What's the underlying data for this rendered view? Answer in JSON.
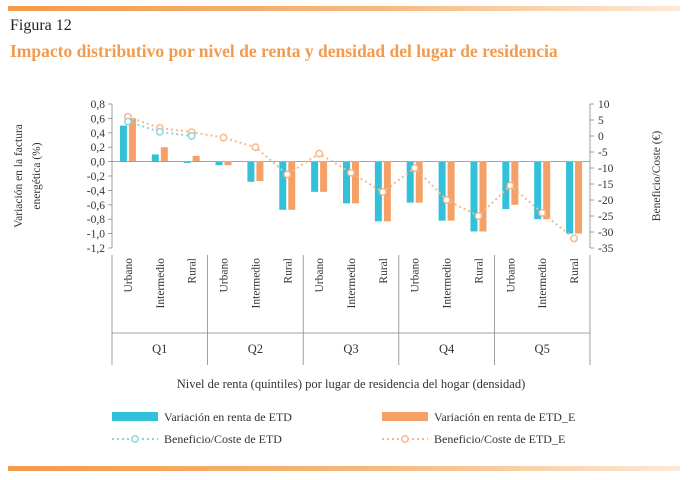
{
  "header": {
    "figure_label": "Figura 12",
    "title": "Impacto distributivo por nivel de renta y densidad del lugar de residencia"
  },
  "colors": {
    "accent": "#f29a4d",
    "etd": "#33c1d9",
    "etd_e": "#f5a066",
    "line_etd": "#8fd3e0",
    "line_etd_e": "#f5b98a"
  },
  "chart_data": {
    "type": "bar",
    "title": "Impacto distributivo por nivel de renta y densidad del lugar de residencia",
    "xlabel": "Nivel de renta (quintiles) por lugar de residencia del hogar (densidad)",
    "ylabel": "Variación en la factura energética (%)",
    "y2label": "Beneficio/Coste (€)",
    "groups": [
      "Q1",
      "Q2",
      "Q3",
      "Q4",
      "Q5"
    ],
    "categories": [
      "Urbano",
      "Intermedio",
      "Rural",
      "Urbano",
      "Intermedio",
      "Rural",
      "Urbano",
      "Intermedio",
      "Rural",
      "Urbano",
      "Intermedio",
      "Rural",
      "Urbano",
      "Intermedio",
      "Rural"
    ],
    "ylim": [
      -1.2,
      0.8
    ],
    "yticks": [
      "0,8",
      "0,6",
      "0,4",
      "0,2",
      "0,0",
      "-0,2",
      "-0,4",
      "-0,6",
      "-0,8",
      "-1,0",
      "-1,2"
    ],
    "y2lim": [
      -35,
      10
    ],
    "y2ticks": [
      "10",
      "5",
      "0",
      "-5",
      "-10",
      "-15",
      "-20",
      "-25",
      "-30",
      "-35"
    ],
    "series": [
      {
        "name": "Variación en renta de ETD",
        "axis": "left",
        "kind": "bar",
        "values": [
          0.5,
          0.1,
          -0.02,
          -0.05,
          -0.28,
          -0.67,
          -0.42,
          -0.58,
          -0.83,
          -0.57,
          -0.82,
          -0.97,
          -0.66,
          -0.8,
          -1.0
        ]
      },
      {
        "name": "Variación en renta de ETD_E",
        "axis": "left",
        "kind": "bar",
        "values": [
          0.6,
          0.2,
          0.08,
          -0.05,
          -0.27,
          -0.67,
          -0.42,
          -0.58,
          -0.83,
          -0.57,
          -0.82,
          -0.97,
          -0.6,
          -0.8,
          -1.0
        ]
      },
      {
        "name": "Beneficio/Coste de ETD",
        "axis": "right",
        "kind": "line",
        "values": [
          4.5,
          1.3,
          0.0,
          null,
          null,
          null,
          null,
          null,
          null,
          null,
          null,
          null,
          null,
          null,
          null
        ]
      },
      {
        "name": "Beneficio/Coste de ETD_E",
        "axis": "right",
        "kind": "line",
        "values": [
          6.0,
          2.5,
          1.2,
          -0.5,
          -3.5,
          -12.0,
          -5.5,
          -11.5,
          -17.5,
          -10.0,
          -20.0,
          -25.0,
          -15.5,
          -24.0,
          -32.0
        ]
      }
    ],
    "legend_position": "bottom",
    "grid": false
  }
}
